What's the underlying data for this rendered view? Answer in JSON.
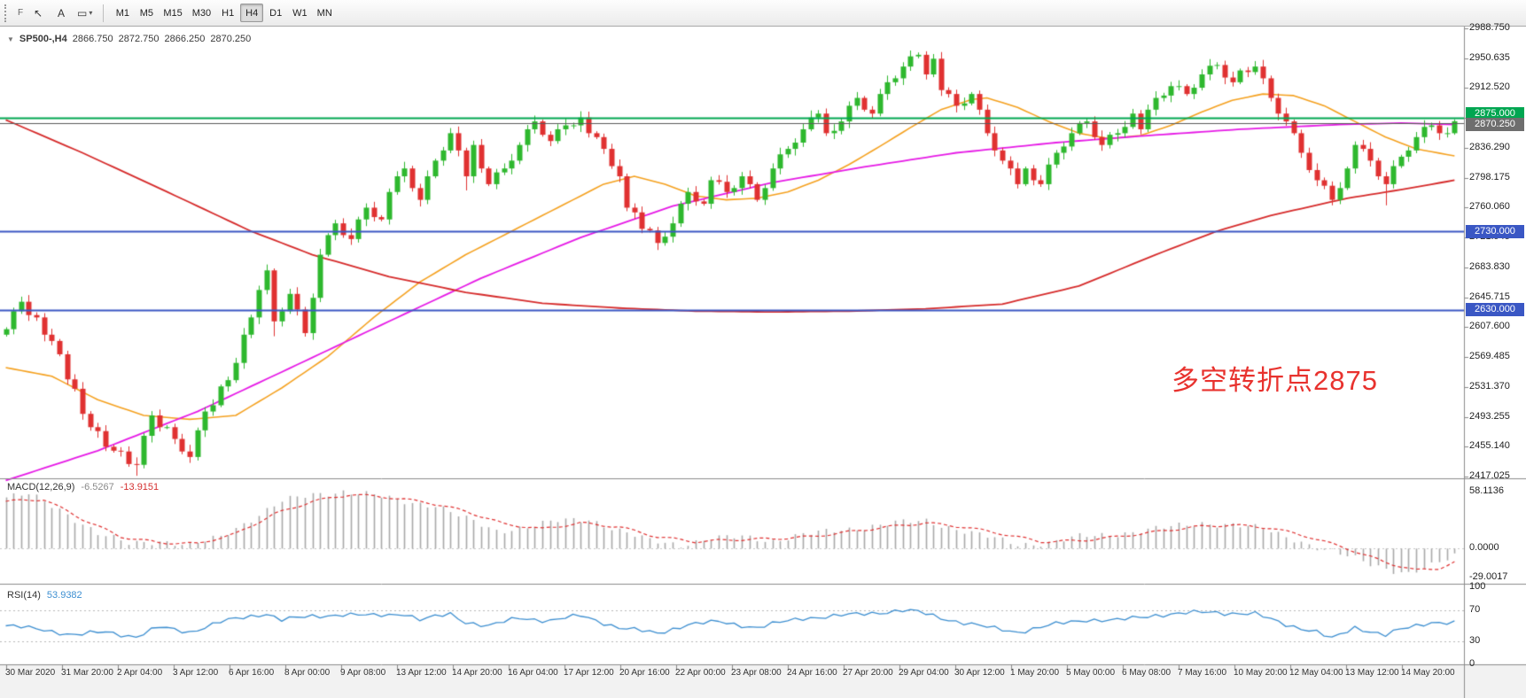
{
  "toolbar": {
    "handle_label": "F",
    "cursor_glyph": "↖",
    "text_glyph": "A",
    "shapes_glyph": "▭",
    "caret_glyph": "▾",
    "timeframes": [
      {
        "label": "M1",
        "active": false
      },
      {
        "label": "M5",
        "active": false
      },
      {
        "label": "M15",
        "active": false
      },
      {
        "label": "M30",
        "active": false
      },
      {
        "label": "H1",
        "active": false
      },
      {
        "label": "H4",
        "active": true
      },
      {
        "label": "D1",
        "active": false
      },
      {
        "label": "W1",
        "active": false
      },
      {
        "label": "MN",
        "active": false
      }
    ]
  },
  "symbol_header": {
    "collapse_glyph": "▼",
    "symbol": "SP500-,H4",
    "open": "2866.750",
    "high": "2872.750",
    "low": "2866.250",
    "close": "2870.250"
  },
  "annotation": {
    "text": "多空转折点2875",
    "color": "#e8322e"
  },
  "colors": {
    "macd_main_text": "#8a8a8a",
    "macd_signal_text": "#d42f2f",
    "rsi_text": "#3d8fd1",
    "axis_text": "#1f1f1f",
    "panel_border": "#8c8c8c",
    "time_strip_bg": "#f2f2f2"
  },
  "price_axis": {
    "labels": [
      "2988.750",
      "2950.635",
      "2912.520",
      "2874.405",
      "2836.290",
      "2798.175",
      "2760.060",
      "2721.945",
      "2683.830",
      "2645.715",
      "2607.600",
      "2569.485",
      "2531.370",
      "2493.255",
      "2455.140",
      "2417.025"
    ],
    "tags": [
      {
        "text": "2875.000",
        "price": 2875.0,
        "bg": "#00a651",
        "dy": -4
      },
      {
        "text": "2870.250",
        "price": 2870.25,
        "bg": "#6e6e6e",
        "dy": 4
      },
      {
        "text": "2730.000",
        "price": 2730.0,
        "bg": "#3a57c4",
        "dy": 0
      },
      {
        "text": "2630.000",
        "price": 2630.0,
        "bg": "#3a57c4",
        "dy": 0
      }
    ]
  },
  "panels": {
    "macd": {
      "title": "MACD(12,26,9)",
      "value_main": "-6.5267",
      "value_signal": "-13.9151",
      "axis_labels": [
        {
          "value": 58.1136,
          "text": "58.1136"
        },
        {
          "value": 0,
          "text": "0.0000"
        },
        {
          "value": -29.0017,
          "text": "-29.0017"
        }
      ]
    },
    "rsi": {
      "title": "RSI(14)",
      "value": "53.9382",
      "axis_labels": [
        {
          "value": 100,
          "text": "100"
        },
        {
          "value": 70,
          "text": "70"
        },
        {
          "value": 30,
          "text": "30"
        },
        {
          "value": 0,
          "text": "0"
        }
      ],
      "levels": [
        70,
        30
      ]
    }
  },
  "time_axis": {
    "labels": [
      "30 Mar 2020",
      "31 Mar 20:00",
      "2 Apr 04:00",
      "3 Apr 12:00",
      "6 Apr 16:00",
      "8 Apr 00:00",
      "9 Apr 08:00",
      "13 Apr 12:00",
      "14 Apr 20:00",
      "16 Apr 04:00",
      "17 Apr 12:00",
      "20 Apr 16:00",
      "22 Apr 00:00",
      "23 Apr 08:00",
      "24 Apr 16:00",
      "27 Apr 20:00",
      "29 Apr 04:00",
      "30 Apr 12:00",
      "1 May 20:00",
      "5 May 00:00",
      "6 May 08:00",
      "7 May 16:00",
      "10 May 20:00",
      "12 May 04:00",
      "13 May 12:00",
      "14 May 20:00"
    ]
  },
  "chart_data": {
    "type": "candlestick",
    "symbol": "SP500-",
    "timeframe": "H4",
    "y_range": [
      2417.025,
      2988.75
    ],
    "current_price": 2870.25,
    "candles": {
      "first_open": 2598,
      "closes": [
        2605,
        2628,
        2640,
        2623,
        2620,
        2598,
        2590,
        2573,
        2541,
        2529,
        2497,
        2480,
        2475,
        2455,
        2450,
        2449,
        2433,
        2432,
        2469,
        2495,
        2480,
        2480,
        2465,
        2449,
        2442,
        2476,
        2500,
        2508,
        2532,
        2540,
        2562,
        2598,
        2620,
        2655,
        2680,
        2615,
        2628,
        2650,
        2630,
        2600,
        2645,
        2700,
        2725,
        2740,
        2725,
        2720,
        2745,
        2760,
        2748,
        2745,
        2780,
        2800,
        2810,
        2785,
        2770,
        2800,
        2820,
        2833,
        2855,
        2833,
        2800,
        2840,
        2810,
        2790,
        2805,
        2810,
        2820,
        2840,
        2860,
        2870,
        2853,
        2845,
        2860,
        2865,
        2865,
        2875,
        2855,
        2850,
        2835,
        2813,
        2800,
        2760,
        2754,
        2733,
        2731,
        2715,
        2723,
        2740,
        2765,
        2780,
        2768,
        2765,
        2795,
        2793,
        2780,
        2785,
        2800,
        2790,
        2770,
        2785,
        2810,
        2828,
        2835,
        2843,
        2860,
        2875,
        2880,
        2855,
        2858,
        2870,
        2890,
        2900,
        2885,
        2880,
        2905,
        2920,
        2925,
        2940,
        2953,
        2955,
        2930,
        2950,
        2910,
        2905,
        2890,
        2893,
        2905,
        2885,
        2855,
        2833,
        2820,
        2810,
        2790,
        2810,
        2795,
        2790,
        2815,
        2830,
        2838,
        2855,
        2868,
        2870,
        2850,
        2840,
        2853,
        2855,
        2863,
        2880,
        2860,
        2885,
        2900,
        2903,
        2915,
        2915,
        2905,
        2913,
        2930,
        2941,
        2942,
        2926,
        2920,
        2935,
        2933,
        2940,
        2925,
        2900,
        2880,
        2870,
        2855,
        2830,
        2808,
        2795,
        2788,
        2770,
        2785,
        2810,
        2840,
        2835,
        2820,
        2800,
        2790,
        2813,
        2825,
        2833,
        2850,
        2863,
        2865,
        2855,
        2855,
        2870.25
      ],
      "wick_overrides": [
        {
          "i": 17,
          "low": 2418
        },
        {
          "i": 35,
          "low": 2596
        },
        {
          "i": 60,
          "low": 2782
        },
        {
          "i": 75,
          "high": 2883
        },
        {
          "i": 85,
          "low": 2706
        },
        {
          "i": 105,
          "high": 2884
        },
        {
          "i": 119,
          "high": 2958
        },
        {
          "i": 121,
          "high": 2956
        },
        {
          "i": 147,
          "high": 2886
        },
        {
          "i": 163,
          "high": 2947
        },
        {
          "i": 173,
          "low": 2763
        },
        {
          "i": 180,
          "low": 2763
        },
        {
          "i": 189,
          "high": 2872.75,
          "low": 2853
        }
      ]
    },
    "colors": {
      "up": "#2eb82e",
      "down": "#e03131"
    },
    "moving_averages": [
      {
        "name": "fast",
        "color": "#f5a11f",
        "width": 1.6,
        "anchors": [
          [
            0,
            2556
          ],
          [
            6,
            2545
          ],
          [
            12,
            2515
          ],
          [
            18,
            2495
          ],
          [
            24,
            2490
          ],
          [
            30,
            2495
          ],
          [
            36,
            2530
          ],
          [
            42,
            2570
          ],
          [
            48,
            2620
          ],
          [
            54,
            2665
          ],
          [
            60,
            2700
          ],
          [
            66,
            2730
          ],
          [
            72,
            2760
          ],
          [
            78,
            2790
          ],
          [
            82,
            2800
          ],
          [
            86,
            2790
          ],
          [
            90,
            2775
          ],
          [
            94,
            2770
          ],
          [
            98,
            2772
          ],
          [
            102,
            2780
          ],
          [
            106,
            2795
          ],
          [
            110,
            2815
          ],
          [
            114,
            2838
          ],
          [
            118,
            2862
          ],
          [
            122,
            2885
          ],
          [
            126,
            2898
          ],
          [
            128,
            2900
          ],
          [
            132,
            2888
          ],
          [
            136,
            2870
          ],
          [
            140,
            2855
          ],
          [
            144,
            2848
          ],
          [
            148,
            2852
          ],
          [
            152,
            2865
          ],
          [
            156,
            2882
          ],
          [
            160,
            2897
          ],
          [
            164,
            2905
          ],
          [
            168,
            2903
          ],
          [
            172,
            2890
          ],
          [
            176,
            2870
          ],
          [
            180,
            2850
          ],
          [
            184,
            2835
          ],
          [
            189,
            2826
          ]
        ]
      },
      {
        "name": "medium",
        "color": "#e61ae6",
        "width": 1.8,
        "anchors": [
          [
            0,
            2412
          ],
          [
            12,
            2450
          ],
          [
            25,
            2500
          ],
          [
            37,
            2555
          ],
          [
            50,
            2615
          ],
          [
            62,
            2670
          ],
          [
            75,
            2722
          ],
          [
            87,
            2762
          ],
          [
            100,
            2792
          ],
          [
            112,
            2812
          ],
          [
            124,
            2830
          ],
          [
            137,
            2843
          ],
          [
            149,
            2852
          ],
          [
            161,
            2860
          ],
          [
            174,
            2866
          ],
          [
            182,
            2868
          ],
          [
            189,
            2866
          ]
        ]
      },
      {
        "name": "slow",
        "color": "#d62b2b",
        "width": 1.8,
        "anchors": [
          [
            0,
            2872
          ],
          [
            10,
            2830
          ],
          [
            20,
            2785
          ],
          [
            32,
            2730
          ],
          [
            40,
            2700
          ],
          [
            50,
            2672
          ],
          [
            60,
            2652
          ],
          [
            70,
            2638
          ],
          [
            80,
            2632
          ],
          [
            90,
            2628
          ],
          [
            100,
            2627
          ],
          [
            110,
            2628
          ],
          [
            120,
            2631
          ],
          [
            130,
            2637
          ],
          [
            140,
            2660
          ],
          [
            150,
            2700
          ],
          [
            158,
            2730
          ],
          [
            165,
            2750
          ],
          [
            175,
            2772
          ],
          [
            182,
            2783
          ],
          [
            189,
            2795
          ]
        ]
      }
    ],
    "hlines": [
      {
        "price": 2875,
        "color": "#00a651",
        "width": 2
      },
      {
        "price": 2868,
        "color": "#5a5a5a",
        "width": 1
      },
      {
        "price": 2730,
        "color": "#3a57c4",
        "width": 2
      },
      {
        "price": 2630,
        "color": "#3a57c4",
        "width": 2
      }
    ],
    "macd": {
      "current_main": -6.5267,
      "current_signal": -13.9151,
      "hist_color": "#a9a9a9",
      "signal_color": "#e03131",
      "hist_anchors": [
        [
          0,
          52
        ],
        [
          3,
          55
        ],
        [
          7,
          40
        ],
        [
          12,
          15
        ],
        [
          16,
          5
        ],
        [
          20,
          8
        ],
        [
          24,
          3
        ],
        [
          28,
          12
        ],
        [
          32,
          30
        ],
        [
          36,
          48
        ],
        [
          40,
          55
        ],
        [
          44,
          58
        ],
        [
          48,
          54
        ],
        [
          52,
          48
        ],
        [
          56,
          44
        ],
        [
          60,
          30
        ],
        [
          64,
          18
        ],
        [
          68,
          22
        ],
        [
          72,
          28
        ],
        [
          76,
          30
        ],
        [
          80,
          18
        ],
        [
          84,
          8
        ],
        [
          88,
          4
        ],
        [
          92,
          10
        ],
        [
          96,
          12
        ],
        [
          100,
          8
        ],
        [
          104,
          14
        ],
        [
          108,
          18
        ],
        [
          112,
          22
        ],
        [
          116,
          26
        ],
        [
          120,
          28
        ],
        [
          124,
          20
        ],
        [
          128,
          12
        ],
        [
          132,
          4
        ],
        [
          136,
          6
        ],
        [
          140,
          12
        ],
        [
          144,
          14
        ],
        [
          148,
          18
        ],
        [
          152,
          22
        ],
        [
          156,
          26
        ],
        [
          160,
          24
        ],
        [
          164,
          20
        ],
        [
          168,
          10
        ],
        [
          172,
          -2
        ],
        [
          176,
          -10
        ],
        [
          180,
          -20
        ],
        [
          183,
          -26
        ],
        [
          186,
          -18
        ],
        [
          189,
          -6.5
        ]
      ],
      "signal_anchors": [
        [
          0,
          48
        ],
        [
          5,
          50
        ],
        [
          10,
          30
        ],
        [
          15,
          12
        ],
        [
          20,
          6
        ],
        [
          25,
          5
        ],
        [
          30,
          15
        ],
        [
          35,
          35
        ],
        [
          40,
          48
        ],
        [
          45,
          55
        ],
        [
          50,
          52
        ],
        [
          55,
          47
        ],
        [
          60,
          38
        ],
        [
          65,
          25
        ],
        [
          70,
          20
        ],
        [
          75,
          26
        ],
        [
          80,
          22
        ],
        [
          85,
          12
        ],
        [
          90,
          7
        ],
        [
          95,
          9
        ],
        [
          100,
          10
        ],
        [
          105,
          12
        ],
        [
          110,
          17
        ],
        [
          115,
          22
        ],
        [
          120,
          26
        ],
        [
          125,
          22
        ],
        [
          130,
          15
        ],
        [
          135,
          7
        ],
        [
          140,
          8
        ],
        [
          145,
          12
        ],
        [
          150,
          17
        ],
        [
          155,
          22
        ],
        [
          160,
          24
        ],
        [
          165,
          21
        ],
        [
          170,
          12
        ],
        [
          175,
          0
        ],
        [
          180,
          -14
        ],
        [
          184,
          -22
        ],
        [
          187,
          -20
        ],
        [
          189,
          -13.9
        ]
      ]
    },
    "rsi": {
      "current": 53.9382,
      "color": "#3d8fd1",
      "anchors": [
        [
          0,
          50
        ],
        [
          5,
          45
        ],
        [
          9,
          38
        ],
        [
          13,
          42
        ],
        [
          17,
          36
        ],
        [
          20,
          48
        ],
        [
          24,
          42
        ],
        [
          28,
          55
        ],
        [
          34,
          66
        ],
        [
          36,
          58
        ],
        [
          40,
          62
        ],
        [
          44,
          65
        ],
        [
          48,
          63
        ],
        [
          52,
          66
        ],
        [
          54,
          58
        ],
        [
          58,
          65
        ],
        [
          60,
          55
        ],
        [
          63,
          50
        ],
        [
          67,
          60
        ],
        [
          71,
          57
        ],
        [
          75,
          63
        ],
        [
          80,
          48
        ],
        [
          85,
          40
        ],
        [
          89,
          52
        ],
        [
          93,
          55
        ],
        [
          98,
          48
        ],
        [
          104,
          60
        ],
        [
          110,
          64
        ],
        [
          117,
          70
        ],
        [
          119,
          68
        ],
        [
          123,
          58
        ],
        [
          128,
          48
        ],
        [
          132,
          42
        ],
        [
          137,
          52
        ],
        [
          141,
          58
        ],
        [
          145,
          57
        ],
        [
          150,
          64
        ],
        [
          157,
          68
        ],
        [
          163,
          65
        ],
        [
          167,
          52
        ],
        [
          171,
          42
        ],
        [
          173,
          33
        ],
        [
          176,
          48
        ],
        [
          180,
          38
        ],
        [
          182,
          45
        ],
        [
          186,
          55
        ],
        [
          189,
          54
        ]
      ]
    }
  }
}
